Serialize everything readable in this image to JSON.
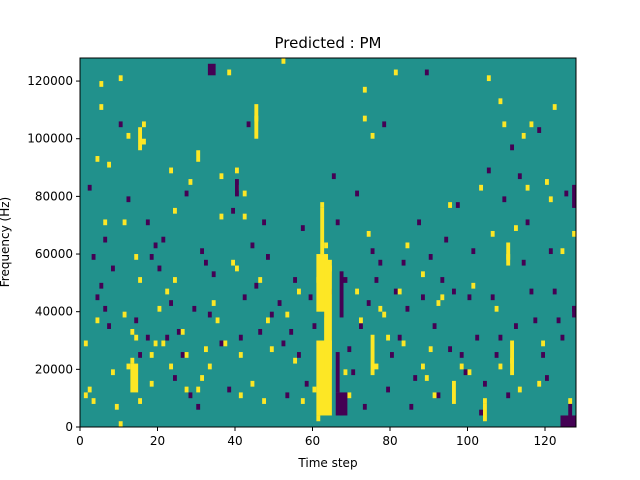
{
  "chart_data": {
    "type": "heatmap",
    "title": "Predicted : PM",
    "xlabel": "Time step",
    "ylabel": "Frequency (Hz)",
    "xlim": [
      0,
      128
    ],
    "ylim": [
      0,
      128000
    ],
    "x_ticks": [
      0,
      20,
      40,
      60,
      80,
      100,
      120
    ],
    "y_ticks": [
      0,
      20000,
      40000,
      60000,
      80000,
      100000,
      120000
    ],
    "grid": false,
    "legend": "none",
    "colors": {
      "background": "#21918c",
      "high": "#fde725",
      "low": "#440154"
    },
    "cell_width_steps": 1,
    "cell_height_hz": 2000,
    "high_cells": [
      [
        1,
        10000
      ],
      [
        1,
        28000
      ],
      [
        2,
        12000
      ],
      [
        3,
        8000
      ],
      [
        4,
        36000
      ],
      [
        4,
        92000
      ],
      [
        5,
        110000
      ],
      [
        5,
        118000
      ],
      [
        6,
        70000
      ],
      [
        7,
        90000
      ],
      [
        8,
        18000
      ],
      [
        9,
        6000
      ],
      [
        10,
        0
      ],
      [
        10,
        120000
      ],
      [
        11,
        38000
      ],
      [
        11,
        70000
      ],
      [
        12,
        20000
      ],
      [
        12,
        100000
      ],
      [
        13,
        22000
      ],
      [
        13,
        32000
      ],
      [
        14,
        30000
      ],
      [
        14,
        58000
      ],
      [
        15,
        8000
      ],
      [
        15,
        50000
      ],
      [
        15,
        96000
      ],
      [
        16,
        98000
      ],
      [
        16,
        104000
      ],
      [
        18,
        14000
      ],
      [
        18,
        24000
      ],
      [
        19,
        28000
      ],
      [
        20,
        40000
      ],
      [
        21,
        28000
      ],
      [
        22,
        46000
      ],
      [
        23,
        20000
      ],
      [
        23,
        88000
      ],
      [
        24,
        50000
      ],
      [
        24,
        74000
      ],
      [
        26,
        32000
      ],
      [
        27,
        12000
      ],
      [
        27,
        24000
      ],
      [
        28,
        84000
      ],
      [
        30,
        12000
      ],
      [
        31,
        16000
      ],
      [
        32,
        26000
      ],
      [
        33,
        20000
      ],
      [
        34,
        42000
      ],
      [
        35,
        36000
      ],
      [
        36,
        72000
      ],
      [
        36,
        86000
      ],
      [
        37,
        28000
      ],
      [
        38,
        122000
      ],
      [
        39,
        56000
      ],
      [
        40,
        54000
      ],
      [
        40,
        82000
      ],
      [
        40,
        88000
      ],
      [
        41,
        10000
      ],
      [
        41,
        24000
      ],
      [
        42,
        72000
      ],
      [
        42,
        80000
      ],
      [
        44,
        14000
      ],
      [
        45,
        106000
      ],
      [
        46,
        50000
      ],
      [
        47,
        8000
      ],
      [
        48,
        36000
      ],
      [
        49,
        26000
      ],
      [
        52,
        126000
      ],
      [
        53,
        38000
      ],
      [
        55,
        22000
      ],
      [
        56,
        46000
      ],
      [
        57,
        8000
      ],
      [
        60,
        12000
      ],
      [
        61,
        2000
      ],
      [
        61,
        50000
      ],
      [
        62,
        76000
      ],
      [
        63,
        62000
      ],
      [
        64,
        54000
      ],
      [
        68,
        18000
      ],
      [
        69,
        10000
      ],
      [
        71,
        46000
      ],
      [
        72,
        36000
      ],
      [
        73,
        116000
      ],
      [
        73,
        106000
      ],
      [
        74,
        66000
      ],
      [
        75,
        100000
      ],
      [
        76,
        20000
      ],
      [
        77,
        40000
      ],
      [
        78,
        38000
      ],
      [
        79,
        30000
      ],
      [
        81,
        122000
      ],
      [
        82,
        46000
      ],
      [
        83,
        28000
      ],
      [
        84,
        62000
      ],
      [
        88,
        20000
      ],
      [
        88,
        52000
      ],
      [
        89,
        16000
      ],
      [
        90,
        26000
      ],
      [
        91,
        10000
      ],
      [
        92,
        42000
      ],
      [
        93,
        44000
      ],
      [
        95,
        76000
      ],
      [
        98,
        20000
      ],
      [
        100,
        18000
      ],
      [
        101,
        48000
      ],
      [
        103,
        82000
      ],
      [
        104,
        8000
      ],
      [
        105,
        120000
      ],
      [
        106,
        66000
      ],
      [
        107,
        40000
      ],
      [
        108,
        20000
      ],
      [
        108,
        112000
      ],
      [
        109,
        104000
      ],
      [
        110,
        58000
      ],
      [
        111,
        22000
      ],
      [
        112,
        68000
      ],
      [
        113,
        12000
      ],
      [
        114,
        100000
      ],
      [
        115,
        82000
      ],
      [
        116,
        104000
      ],
      [
        118,
        14000
      ],
      [
        119,
        28000
      ],
      [
        120,
        84000
      ],
      [
        121,
        78000
      ],
      [
        122,
        110000
      ],
      [
        124,
        60000
      ],
      [
        126,
        8000
      ],
      [
        127,
        66000
      ]
    ],
    "low_cells": [
      [
        2,
        82000
      ],
      [
        3,
        58000
      ],
      [
        4,
        44000
      ],
      [
        5,
        48000
      ],
      [
        6,
        64000
      ],
      [
        6,
        40000
      ],
      [
        7,
        34000
      ],
      [
        8,
        54000
      ],
      [
        10,
        104000
      ],
      [
        12,
        78000
      ],
      [
        14,
        36000
      ],
      [
        15,
        24000
      ],
      [
        17,
        30000
      ],
      [
        17,
        70000
      ],
      [
        18,
        58000
      ],
      [
        19,
        62000
      ],
      [
        20,
        54000
      ],
      [
        21,
        64000
      ],
      [
        22,
        30000
      ],
      [
        23,
        42000
      ],
      [
        24,
        16000
      ],
      [
        25,
        32000
      ],
      [
        26,
        24000
      ],
      [
        27,
        80000
      ],
      [
        28,
        10000
      ],
      [
        29,
        40000
      ],
      [
        30,
        6000
      ],
      [
        31,
        60000
      ],
      [
        32,
        56000
      ],
      [
        33,
        38000
      ],
      [
        34,
        52000
      ],
      [
        36,
        28000
      ],
      [
        38,
        12000
      ],
      [
        39,
        74000
      ],
      [
        41,
        30000
      ],
      [
        42,
        44000
      ],
      [
        43,
        104000
      ],
      [
        44,
        62000
      ],
      [
        45,
        48000
      ],
      [
        46,
        32000
      ],
      [
        47,
        70000
      ],
      [
        48,
        58000
      ],
      [
        49,
        38000
      ],
      [
        51,
        42000
      ],
      [
        52,
        28000
      ],
      [
        53,
        10000
      ],
      [
        54,
        32000
      ],
      [
        55,
        50000
      ],
      [
        56,
        24000
      ],
      [
        57,
        68000
      ],
      [
        58,
        14000
      ],
      [
        59,
        44000
      ],
      [
        60,
        34000
      ],
      [
        62,
        26000
      ],
      [
        63,
        38000
      ],
      [
        64,
        46000
      ],
      [
        65,
        86000
      ],
      [
        66,
        70000
      ],
      [
        67,
        4000
      ],
      [
        68,
        50000
      ],
      [
        69,
        26000
      ],
      [
        70,
        18000
      ],
      [
        71,
        80000
      ],
      [
        72,
        34000
      ],
      [
        73,
        6000
      ],
      [
        74,
        42000
      ],
      [
        75,
        60000
      ],
      [
        76,
        50000
      ],
      [
        77,
        56000
      ],
      [
        78,
        104000
      ],
      [
        79,
        12000
      ],
      [
        80,
        24000
      ],
      [
        81,
        46000
      ],
      [
        82,
        30000
      ],
      [
        83,
        56000
      ],
      [
        84,
        40000
      ],
      [
        85,
        6000
      ],
      [
        86,
        16000
      ],
      [
        87,
        70000
      ],
      [
        88,
        44000
      ],
      [
        89,
        122000
      ],
      [
        90,
        58000
      ],
      [
        91,
        34000
      ],
      [
        92,
        10000
      ],
      [
        93,
        50000
      ],
      [
        94,
        64000
      ],
      [
        95,
        26000
      ],
      [
        96,
        46000
      ],
      [
        97,
        76000
      ],
      [
        98,
        24000
      ],
      [
        99,
        18000
      ],
      [
        100,
        44000
      ],
      [
        101,
        60000
      ],
      [
        102,
        30000
      ],
      [
        103,
        4000
      ],
      [
        104,
        14000
      ],
      [
        105,
        88000
      ],
      [
        106,
        44000
      ],
      [
        107,
        24000
      ],
      [
        108,
        30000
      ],
      [
        109,
        78000
      ],
      [
        110,
        10000
      ],
      [
        111,
        96000
      ],
      [
        112,
        34000
      ],
      [
        113,
        86000
      ],
      [
        114,
        56000
      ],
      [
        115,
        70000
      ],
      [
        116,
        46000
      ],
      [
        117,
        36000
      ],
      [
        118,
        102000
      ],
      [
        119,
        24000
      ],
      [
        120,
        16000
      ],
      [
        121,
        60000
      ],
      [
        122,
        46000
      ],
      [
        123,
        36000
      ],
      [
        124,
        30000
      ],
      [
        125,
        80000
      ],
      [
        126,
        2000
      ],
      [
        127,
        40000
      ]
    ],
    "high_blocks": [
      {
        "t": [
          13,
          15
        ],
        "f": [
          12000,
          22000
        ]
      },
      {
        "t": [
          15,
          16
        ],
        "f": [
          98000,
          104000
        ]
      },
      {
        "t": [
          30,
          31
        ],
        "f": [
          92000,
          96000
        ]
      },
      {
        "t": [
          45,
          46
        ],
        "f": [
          100000,
          112000
        ]
      },
      {
        "t": [
          61,
          65
        ],
        "f": [
          4000,
          30000
        ]
      },
      {
        "t": [
          61,
          64
        ],
        "f": [
          40000,
          60000
        ]
      },
      {
        "t": [
          62,
          63
        ],
        "f": [
          60000,
          76000
        ]
      },
      {
        "t": [
          63,
          65
        ],
        "f": [
          20000,
          58000
        ]
      },
      {
        "t": [
          75,
          76
        ],
        "f": [
          18000,
          32000
        ]
      },
      {
        "t": [
          96,
          97
        ],
        "f": [
          8000,
          16000
        ]
      },
      {
        "t": [
          104,
          105
        ],
        "f": [
          2000,
          8000
        ]
      },
      {
        "t": [
          110,
          111
        ],
        "f": [
          56000,
          64000
        ]
      },
      {
        "t": [
          111,
          112
        ],
        "f": [
          18000,
          30000
        ]
      }
    ],
    "low_blocks": [
      {
        "t": [
          33,
          35
        ],
        "f": [
          122000,
          126000
        ]
      },
      {
        "t": [
          40,
          41
        ],
        "f": [
          80000,
          86000
        ]
      },
      {
        "t": [
          66,
          69
        ],
        "f": [
          4000,
          12000
        ]
      },
      {
        "t": [
          66,
          67
        ],
        "f": [
          12000,
          26000
        ]
      },
      {
        "t": [
          67,
          68
        ],
        "f": [
          38000,
          54000
        ]
      },
      {
        "t": [
          124,
          128
        ],
        "f": [
          0,
          4000
        ]
      },
      {
        "t": [
          126,
          127
        ],
        "f": [
          4000,
          8000
        ]
      },
      {
        "t": [
          127,
          128
        ],
        "f": [
          38000,
          42000
        ]
      },
      {
        "t": [
          127,
          128
        ],
        "f": [
          76000,
          84000
        ]
      }
    ]
  }
}
